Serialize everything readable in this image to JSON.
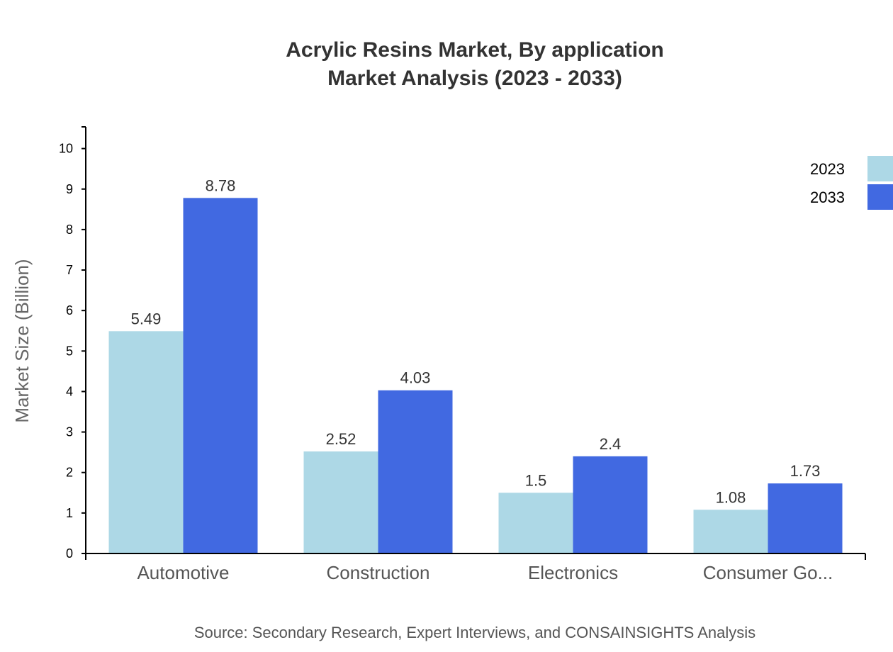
{
  "chart_data": {
    "type": "bar",
    "title": "Acrylic Resins Market, By application",
    "subtitle": "Market Analysis (2023 - 2033)",
    "xlabel": "",
    "ylabel": "Market Size (Billion)",
    "categories": [
      "Automotive",
      "Construction",
      "Electronics",
      "Consumer Go..."
    ],
    "series": [
      {
        "name": "2023",
        "color": "#add8e6",
        "values": [
          5.49,
          2.52,
          1.5,
          1.08
        ]
      },
      {
        "name": "2033",
        "color": "#4169e1",
        "values": [
          8.78,
          4.03,
          2.4,
          1.73
        ]
      }
    ],
    "ylim": [
      0,
      10.536
    ],
    "yticks": [
      0,
      1,
      2,
      3,
      4,
      5,
      6,
      7,
      8,
      9,
      10
    ],
    "grid": false,
    "legend_position": "top-right",
    "source": "Source: Secondary Research, Expert Interviews, and CONSAINSIGHTS Analysis"
  }
}
